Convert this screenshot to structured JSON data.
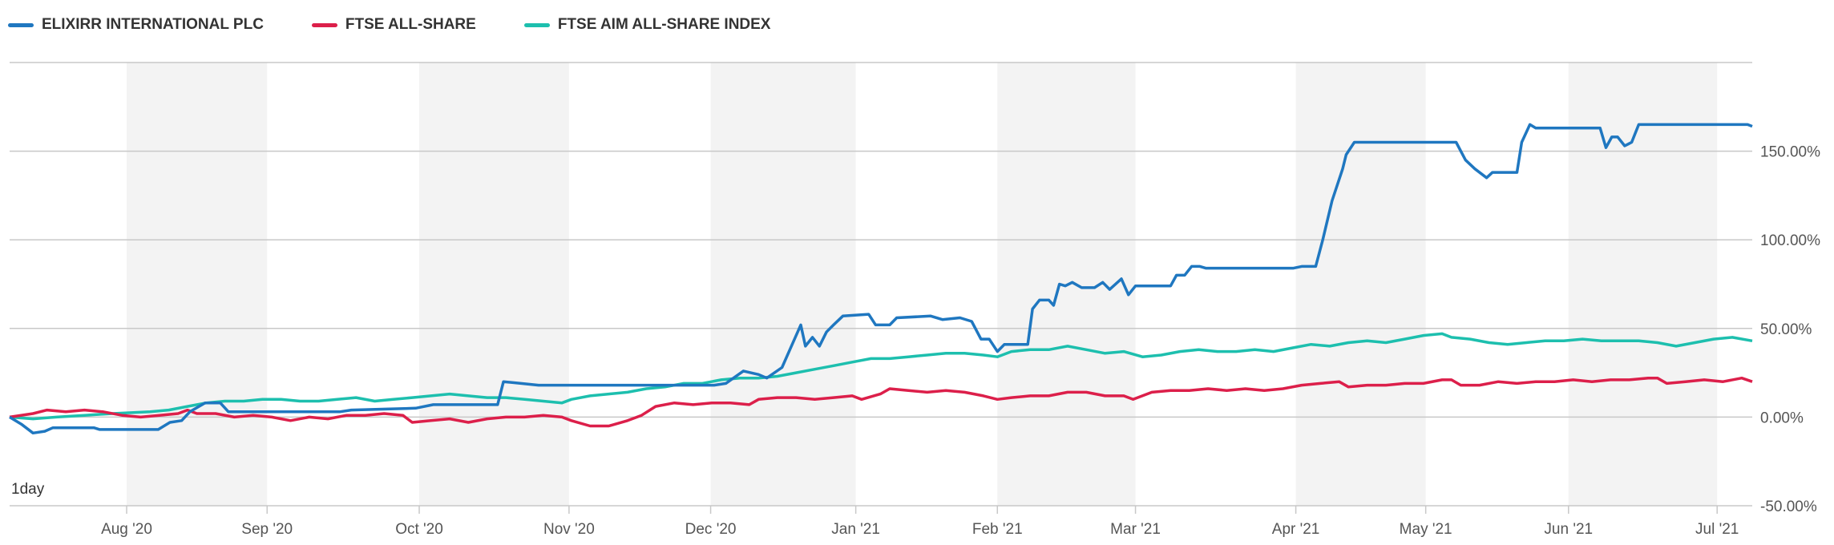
{
  "chart_data": {
    "type": "line",
    "title": "",
    "period_label": "1day",
    "xlabel": "",
    "ylabel": "",
    "x_unit": "trading-day index from start (Jul 2020)",
    "xlim": [
      0,
      372.25
    ],
    "ylim": [
      -50,
      200
    ],
    "y_ticks": [
      {
        "value": 150,
        "label": "150.00%"
      },
      {
        "value": 100,
        "label": "100.00%"
      },
      {
        "value": 50,
        "label": "50.00%"
      },
      {
        "value": 0,
        "label": "0.00%"
      },
      {
        "value": -50,
        "label": "-50.00%"
      }
    ],
    "x_ticks": [
      {
        "t": 25,
        "label": "Aug '20"
      },
      {
        "t": 55,
        "label": "Sep '20"
      },
      {
        "t": 87.5,
        "label": "Oct '20"
      },
      {
        "t": 119.5,
        "label": "Nov '20"
      },
      {
        "t": 149.75,
        "label": "Dec '20"
      },
      {
        "t": 180.75,
        "label": "Jan '21"
      },
      {
        "t": 211,
        "label": "Feb '21"
      },
      {
        "t": 240.5,
        "label": "Mar '21"
      },
      {
        "t": 274.75,
        "label": "Apr '21"
      },
      {
        "t": 302.5,
        "label": "May '21"
      },
      {
        "t": 333,
        "label": "Jun '21"
      },
      {
        "t": 364.75,
        "label": "Jul '21"
      }
    ],
    "shaded_months": [
      [
        25,
        55
      ],
      [
        87.5,
        119.5
      ],
      [
        149.75,
        180.75
      ],
      [
        211,
        240.5
      ],
      [
        274.75,
        302.5
      ],
      [
        333,
        364.75
      ]
    ],
    "legend_position": "top-left",
    "grid": true,
    "series": [
      {
        "name": "ELIXIRR INTERNATIONAL PLC",
        "color": "#1f77c0",
        "points": [
          [
            0,
            0
          ],
          [
            2.5,
            -4
          ],
          [
            5,
            -9
          ],
          [
            7.5,
            -8
          ],
          [
            9.25,
            -6
          ],
          [
            18,
            -6
          ],
          [
            19.25,
            -7
          ],
          [
            28,
            -7
          ],
          [
            31.75,
            -7
          ],
          [
            34.25,
            -3
          ],
          [
            36.75,
            -2
          ],
          [
            38.5,
            3
          ],
          [
            41.75,
            8
          ],
          [
            45,
            8
          ],
          [
            46.75,
            3
          ],
          [
            70.5,
            3
          ],
          [
            73,
            4
          ],
          [
            86.75,
            5
          ],
          [
            90.5,
            7
          ],
          [
            104.25,
            7
          ],
          [
            105.5,
            20
          ],
          [
            109.25,
            19
          ],
          [
            113,
            18
          ],
          [
            150.5,
            18
          ],
          [
            153,
            19
          ],
          [
            156.75,
            26
          ],
          [
            160,
            24
          ],
          [
            161.75,
            22
          ],
          [
            165,
            28
          ],
          [
            167,
            40
          ],
          [
            169,
            52
          ],
          [
            170,
            40
          ],
          [
            171.5,
            45
          ],
          [
            173,
            40
          ],
          [
            174.5,
            48
          ],
          [
            176,
            52
          ],
          [
            178,
            57
          ],
          [
            183.5,
            58
          ],
          [
            185,
            52
          ],
          [
            188,
            52
          ],
          [
            189.5,
            56
          ],
          [
            196.75,
            57
          ],
          [
            199.25,
            55
          ],
          [
            203,
            56
          ],
          [
            205.5,
            54
          ],
          [
            207.5,
            44
          ],
          [
            209.25,
            44
          ],
          [
            211,
            37
          ],
          [
            212.5,
            41
          ],
          [
            217.5,
            41
          ],
          [
            218.5,
            61
          ],
          [
            220,
            66
          ],
          [
            222,
            66
          ],
          [
            223,
            63
          ],
          [
            224.25,
            75
          ],
          [
            225.5,
            74
          ],
          [
            227,
            76
          ],
          [
            229,
            73
          ],
          [
            231.75,
            73
          ],
          [
            233.5,
            76
          ],
          [
            235,
            72
          ],
          [
            237.5,
            78
          ],
          [
            239,
            69
          ],
          [
            240.5,
            74
          ],
          [
            248,
            74
          ],
          [
            249.25,
            80
          ],
          [
            251,
            80
          ],
          [
            252.5,
            85
          ],
          [
            254.25,
            85
          ],
          [
            255.5,
            84
          ],
          [
            274.25,
            84
          ],
          [
            276,
            85
          ],
          [
            279,
            85
          ],
          [
            280.5,
            100
          ],
          [
            282.5,
            122
          ],
          [
            284.75,
            140
          ],
          [
            285.5,
            148
          ],
          [
            287.25,
            155
          ],
          [
            309,
            155
          ],
          [
            311,
            145
          ],
          [
            313,
            140
          ],
          [
            315.5,
            135
          ],
          [
            316.75,
            138
          ],
          [
            322,
            138
          ],
          [
            323,
            155
          ],
          [
            324.75,
            165
          ],
          [
            326,
            163
          ],
          [
            339.75,
            163
          ],
          [
            341,
            152
          ],
          [
            342.25,
            158
          ],
          [
            343.5,
            158
          ],
          [
            345,
            153
          ],
          [
            346.5,
            155
          ],
          [
            348,
            165
          ],
          [
            371.25,
            165
          ],
          [
            372.25,
            164
          ]
        ]
      },
      {
        "name": "FTSE ALL-SHARE",
        "color": "#dc1f4a",
        "points": [
          [
            0,
            0
          ],
          [
            5,
            2
          ],
          [
            8,
            4
          ],
          [
            12,
            3
          ],
          [
            16,
            4
          ],
          [
            20,
            3
          ],
          [
            24,
            1
          ],
          [
            28,
            0
          ],
          [
            32,
            1
          ],
          [
            36,
            2
          ],
          [
            38,
            4
          ],
          [
            40,
            2
          ],
          [
            44,
            2
          ],
          [
            48,
            0
          ],
          [
            52,
            1
          ],
          [
            56,
            0
          ],
          [
            60,
            -2
          ],
          [
            64,
            0
          ],
          [
            68,
            -1
          ],
          [
            72,
            1
          ],
          [
            76,
            1
          ],
          [
            80,
            2
          ],
          [
            84,
            1
          ],
          [
            86,
            -3
          ],
          [
            90,
            -2
          ],
          [
            94,
            -1
          ],
          [
            98,
            -3
          ],
          [
            102,
            -1
          ],
          [
            106,
            0
          ],
          [
            110,
            0
          ],
          [
            114,
            1
          ],
          [
            118,
            0
          ],
          [
            120,
            -2
          ],
          [
            124,
            -5
          ],
          [
            128,
            -5
          ],
          [
            132,
            -2
          ],
          [
            135,
            1
          ],
          [
            138,
            6
          ],
          [
            142,
            8
          ],
          [
            146,
            7
          ],
          [
            150,
            8
          ],
          [
            154,
            8
          ],
          [
            158,
            7
          ],
          [
            160,
            10
          ],
          [
            164,
            11
          ],
          [
            168,
            11
          ],
          [
            172,
            10
          ],
          [
            176,
            11
          ],
          [
            180,
            12
          ],
          [
            182,
            10
          ],
          [
            186,
            13
          ],
          [
            188,
            16
          ],
          [
            192,
            15
          ],
          [
            196,
            14
          ],
          [
            200,
            15
          ],
          [
            204,
            14
          ],
          [
            208,
            12
          ],
          [
            211,
            10
          ],
          [
            214,
            11
          ],
          [
            218,
            12
          ],
          [
            222,
            12
          ],
          [
            226,
            14
          ],
          [
            230,
            14
          ],
          [
            234,
            12
          ],
          [
            238,
            12
          ],
          [
            240,
            10
          ],
          [
            244,
            14
          ],
          [
            248,
            15
          ],
          [
            252,
            15
          ],
          [
            256,
            16
          ],
          [
            260,
            15
          ],
          [
            264,
            16
          ],
          [
            268,
            15
          ],
          [
            272,
            16
          ],
          [
            276,
            18
          ],
          [
            280,
            19
          ],
          [
            284,
            20
          ],
          [
            286,
            17
          ],
          [
            290,
            18
          ],
          [
            294,
            18
          ],
          [
            298,
            19
          ],
          [
            302,
            19
          ],
          [
            306,
            21
          ],
          [
            308,
            21
          ],
          [
            310,
            18
          ],
          [
            314,
            18
          ],
          [
            318,
            20
          ],
          [
            322,
            19
          ],
          [
            326,
            20
          ],
          [
            330,
            20
          ],
          [
            334,
            21
          ],
          [
            338,
            20
          ],
          [
            342,
            21
          ],
          [
            346,
            21
          ],
          [
            350,
            22
          ],
          [
            352,
            22
          ],
          [
            354,
            19
          ],
          [
            358,
            20
          ],
          [
            362,
            21
          ],
          [
            366,
            20
          ],
          [
            370,
            22
          ],
          [
            372.25,
            20
          ]
        ]
      },
      {
        "name": "FTSE AIM ALL-SHARE INDEX",
        "color": "#1dbfae",
        "points": [
          [
            0,
            0
          ],
          [
            5,
            -1
          ],
          [
            10,
            0
          ],
          [
            16,
            1
          ],
          [
            22,
            2
          ],
          [
            30,
            3
          ],
          [
            34,
            4
          ],
          [
            38,
            6
          ],
          [
            42,
            8
          ],
          [
            46,
            9
          ],
          [
            50,
            9
          ],
          [
            54,
            10
          ],
          [
            58,
            10
          ],
          [
            62,
            9
          ],
          [
            66,
            9
          ],
          [
            70,
            10
          ],
          [
            74,
            11
          ],
          [
            78,
            9
          ],
          [
            82,
            10
          ],
          [
            86,
            11
          ],
          [
            90,
            12
          ],
          [
            94,
            13
          ],
          [
            98,
            12
          ],
          [
            102,
            11
          ],
          [
            106,
            11
          ],
          [
            110,
            10
          ],
          [
            114,
            9
          ],
          [
            118,
            8
          ],
          [
            120,
            10
          ],
          [
            124,
            12
          ],
          [
            128,
            13
          ],
          [
            132,
            14
          ],
          [
            136,
            16
          ],
          [
            140,
            17
          ],
          [
            144,
            19
          ],
          [
            148,
            19
          ],
          [
            152,
            21
          ],
          [
            156,
            22
          ],
          [
            160,
            22
          ],
          [
            164,
            23
          ],
          [
            168,
            25
          ],
          [
            172,
            27
          ],
          [
            176,
            29
          ],
          [
            180,
            31
          ],
          [
            184,
            33
          ],
          [
            188,
            33
          ],
          [
            192,
            34
          ],
          [
            196,
            35
          ],
          [
            200,
            36
          ],
          [
            204,
            36
          ],
          [
            208,
            35
          ],
          [
            211,
            34
          ],
          [
            214,
            37
          ],
          [
            218,
            38
          ],
          [
            222,
            38
          ],
          [
            226,
            40
          ],
          [
            230,
            38
          ],
          [
            234,
            36
          ],
          [
            238,
            37
          ],
          [
            242,
            34
          ],
          [
            246,
            35
          ],
          [
            250,
            37
          ],
          [
            254,
            38
          ],
          [
            258,
            37
          ],
          [
            262,
            37
          ],
          [
            266,
            38
          ],
          [
            270,
            37
          ],
          [
            274,
            39
          ],
          [
            278,
            41
          ],
          [
            282,
            40
          ],
          [
            286,
            42
          ],
          [
            290,
            43
          ],
          [
            294,
            42
          ],
          [
            298,
            44
          ],
          [
            302,
            46
          ],
          [
            306,
            47
          ],
          [
            308,
            45
          ],
          [
            312,
            44
          ],
          [
            316,
            42
          ],
          [
            320,
            41
          ],
          [
            324,
            42
          ],
          [
            328,
            43
          ],
          [
            332,
            43
          ],
          [
            336,
            44
          ],
          [
            340,
            43
          ],
          [
            344,
            43
          ],
          [
            348,
            43
          ],
          [
            352,
            42
          ],
          [
            356,
            40
          ],
          [
            360,
            42
          ],
          [
            364,
            44
          ],
          [
            368,
            45
          ],
          [
            372.25,
            43
          ]
        ]
      }
    ]
  }
}
